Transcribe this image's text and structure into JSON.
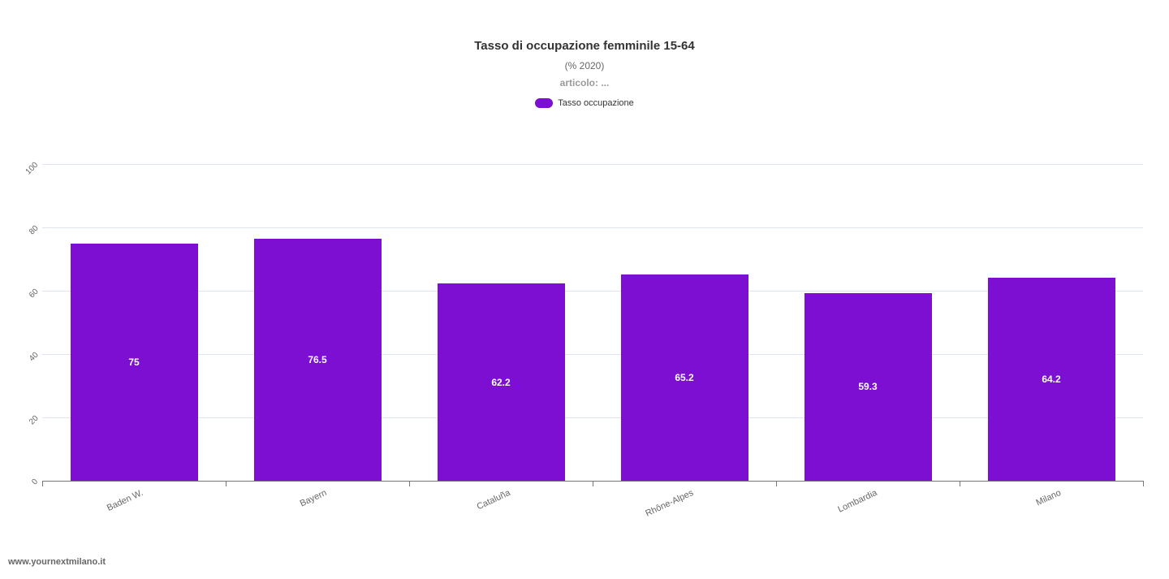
{
  "chart_data": {
    "type": "bar",
    "title": "Tasso di occupazione femminile 15-64",
    "subtitle": "(% 2020)",
    "caption": "articolo: ...",
    "categories": [
      "Baden W.",
      "Bayern",
      "Cataluña",
      "Rhône-Alpes",
      "Lombardia",
      "Milano"
    ],
    "series": [
      {
        "name": "Tasso occupazione",
        "values": [
          75,
          76.5,
          62.2,
          65.2,
          59.3,
          64.2
        ],
        "color": "#7d0fd3"
      }
    ],
    "data_labels": [
      "75",
      "76.5",
      "62.2",
      "65.2",
      "59.3",
      "64.2"
    ],
    "xlabel": "",
    "ylabel": "",
    "ylim": [
      0,
      100
    ],
    "yticks": [
      0,
      20,
      40,
      60,
      80,
      100
    ],
    "grid": "horizontal",
    "legend_position": "top"
  },
  "footer": {
    "site": "www.yournextmilano.it"
  }
}
